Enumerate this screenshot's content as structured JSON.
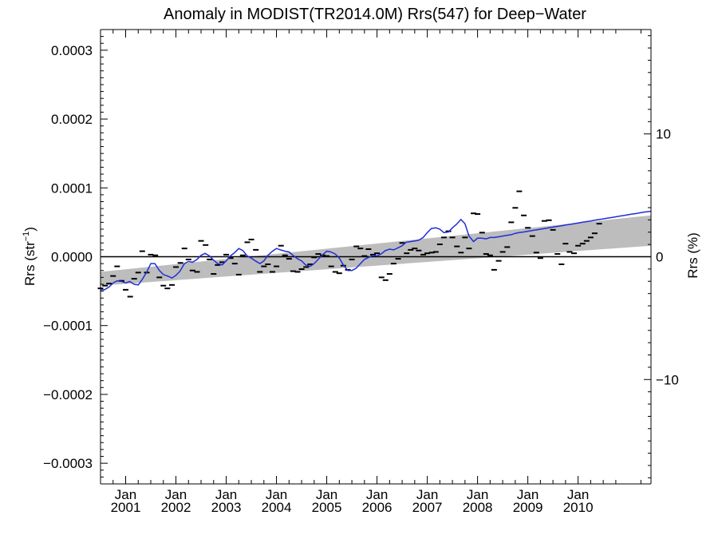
{
  "chart_data": {
    "type": "scatter",
    "title": "Anomaly in MODIST(TR2014.0M) Rrs(547) for Deep−Water",
    "ylabel_left": "Rrs (str⁻¹)",
    "ylabel_right": "Rrs (%)",
    "xlim": [
      2000.0,
      2010.95
    ],
    "ylim_left": [
      -0.00033,
      0.00033
    ],
    "ylim_right": [
      -18.5,
      18.5
    ],
    "y_ticks_left": [
      {
        "value": 0.0003,
        "label": "0.0003"
      },
      {
        "value": 0.0002,
        "label": "0.0002"
      },
      {
        "value": 0.0001,
        "label": "0.0001"
      },
      {
        "value": 0.0,
        "label": "0.0000"
      },
      {
        "value": -0.0001,
        "label": "−0.0001"
      },
      {
        "value": -0.0002,
        "label": "−0.0002"
      },
      {
        "value": -0.0003,
        "label": "−0.0003"
      }
    ],
    "y_ticks_right": [
      {
        "value": 10,
        "label": "10"
      },
      {
        "value": 0,
        "label": "0"
      },
      {
        "value": -10,
        "label": "−10"
      }
    ],
    "x_ticks": [
      {
        "value": 2000.5,
        "month": "Jan",
        "year": "2001"
      },
      {
        "value": 2001.5,
        "month": "Jan",
        "year": "2002"
      },
      {
        "value": 2002.5,
        "month": "Jan",
        "year": "2003"
      },
      {
        "value": 2003.5,
        "month": "Jan",
        "year": "2004"
      },
      {
        "value": 2004.5,
        "month": "Jan",
        "year": "2005"
      },
      {
        "value": 2005.5,
        "month": "Jan",
        "year": "2006"
      },
      {
        "value": 2006.5,
        "month": "Jan",
        "year": "2007"
      },
      {
        "value": 2007.5,
        "month": "Jan",
        "year": "2008"
      },
      {
        "value": 2008.5,
        "month": "Jan",
        "year": "2009"
      },
      {
        "value": 2009.5,
        "month": "Jan",
        "year": "2010"
      }
    ],
    "monthly_anomalies": {
      "x": [
        2000.0,
        2000.09,
        2000.17,
        2000.25,
        2000.33,
        2000.42,
        2000.5,
        2000.59,
        2000.67,
        2000.75,
        2000.83,
        2000.92,
        2001.0,
        2001.09,
        2001.17,
        2001.25,
        2001.33,
        2001.42,
        2001.5,
        2001.59,
        2001.67,
        2001.75,
        2001.83,
        2001.92,
        2002.0,
        2002.09,
        2002.17,
        2002.25,
        2002.33,
        2002.42,
        2002.5,
        2002.59,
        2002.67,
        2002.75,
        2002.83,
        2002.92,
        2003.0,
        2003.09,
        2003.17,
        2003.25,
        2003.33,
        2003.42,
        2003.5,
        2003.59,
        2003.67,
        2003.75,
        2003.83,
        2003.92,
        2004.0,
        2004.09,
        2004.17,
        2004.25,
        2004.33,
        2004.42,
        2004.5,
        2004.59,
        2004.67,
        2004.75,
        2004.83,
        2004.92,
        2005.0,
        2005.09,
        2005.17,
        2005.25,
        2005.33,
        2005.42,
        2005.5,
        2005.59,
        2005.67,
        2005.75,
        2005.83,
        2005.92,
        2006.0,
        2006.09,
        2006.17,
        2006.25,
        2006.33,
        2006.42,
        2006.5,
        2006.59,
        2006.67,
        2006.75,
        2006.83,
        2006.92,
        2007.0,
        2007.09,
        2007.17,
        2007.25,
        2007.33,
        2007.42,
        2007.5,
        2007.59,
        2007.67,
        2007.75,
        2007.83,
        2007.92,
        2008.0,
        2008.09,
        2008.17,
        2008.25,
        2008.33,
        2008.42,
        2008.5,
        2008.59,
        2008.67,
        2008.75,
        2008.83,
        2008.92,
        2009.0,
        2009.09,
        2009.17,
        2009.25,
        2009.33,
        2009.42,
        2009.5,
        2009.59,
        2009.67,
        2009.75,
        2009.83,
        2009.92
      ],
      "y": [
        -4.6e-05,
        -4.2e-05,
        -3.9e-05,
        -2.8e-05,
        -1.4e-05,
        -3.5e-05,
        -4.8e-05,
        -5.8e-05,
        -3.2e-05,
        -2.3e-05,
        8e-06,
        -2.3e-05,
        3e-06,
        2e-06,
        -3e-05,
        -4.2e-05,
        -4.6e-05,
        -4.1e-05,
        -1.5e-05,
        -9e-06,
        1.2e-05,
        -4e-06,
        -2e-05,
        -2.2e-05,
        2.3e-05,
        1.7e-05,
        -4e-06,
        -2.5e-05,
        -1.2e-05,
        -8e-06,
        3e-06,
        -2e-06,
        -1e-05,
        -2.6e-05,
        2e-06,
        2.1e-05,
        2.5e-05,
        1e-05,
        -2.2e-05,
        -1.4e-05,
        -1.1e-05,
        -2.2e-05,
        -1.4e-05,
        1.6e-05,
        2e-06,
        -3e-06,
        -2.1e-05,
        -2.2e-05,
        -1.8e-05,
        -1.5e-05,
        -1.1e-05,
        -1e-06,
        4e-06,
        2e-06,
        1e-06,
        -1.4e-05,
        -2.2e-05,
        -2.4e-05,
        -1.3e-05,
        -1.9e-05,
        -4e-06,
        1.5e-05,
        1.2e-05,
        1e-06,
        1.1e-05,
        3e-06,
        5e-06,
        -3e-05,
        -3.4e-05,
        -2.5e-05,
        -1e-05,
        -3e-06,
        2e-05,
        5e-06,
        1e-05,
        1.2e-05,
        9e-06,
        3e-06,
        5e-06,
        6e-06,
        7e-06,
        1.8e-05,
        2.8e-05,
        3.7e-05,
        2.8e-05,
        1.5e-05,
        6e-06,
        2.8e-05,
        1.2e-05,
        6.3e-05,
        6.2e-05,
        3.5e-05,
        4e-06,
        2e-06,
        -1.9e-05,
        -6e-06,
        7e-06,
        1.4e-05,
        5e-05,
        7.1e-05,
        9.5e-05,
        6e-05,
        4.2e-05,
        3e-05,
        6e-06,
        -2e-06,
        5.2e-05,
        5.3e-05,
        3.9e-05,
        4e-06,
        -1.1e-05,
        1.9e-05,
        7e-06,
        5e-06,
        1.6e-05,
        1.9e-05,
        2.3e-05,
        2.8e-05,
        3.4e-05,
        4.8e-05
      ]
    },
    "smoothed_series": {
      "x": [
        2000.0,
        2000.08,
        2000.17,
        2000.25,
        2000.33,
        2000.42,
        2000.5,
        2000.58,
        2000.67,
        2000.75,
        2000.83,
        2000.92,
        2001.0,
        2001.08,
        2001.17,
        2001.25,
        2001.33,
        2001.42,
        2001.5,
        2001.58,
        2001.67,
        2001.75,
        2001.83,
        2001.92,
        2002.0,
        2002.08,
        2002.17,
        2002.25,
        2002.33,
        2002.42,
        2002.5,
        2002.58,
        2002.67,
        2002.75,
        2002.83,
        2002.92,
        2003.0,
        2003.08,
        2003.17,
        2003.25,
        2003.33,
        2003.42,
        2003.5,
        2003.58,
        2003.67,
        2003.75,
        2003.83,
        2003.92,
        2004.0,
        2004.08,
        2004.17,
        2004.25,
        2004.33,
        2004.42,
        2004.5,
        2004.58,
        2004.67,
        2004.75,
        2004.83,
        2004.92,
        2005.0,
        2005.08,
        2005.17,
        2005.25,
        2005.33,
        2005.42,
        2005.5,
        2005.58,
        2005.67,
        2005.75,
        2005.83,
        2005.92,
        2006.0,
        2006.08,
        2006.17,
        2006.25,
        2006.33,
        2006.42,
        2006.5,
        2006.58,
        2006.67,
        2006.75,
        2006.83,
        2006.92,
        2007.0,
        2007.08,
        2007.17,
        2007.25,
        2007.33,
        2007.42,
        2007.5,
        2007.58,
        2007.67,
        2007.75,
        2007.83,
        2007.92,
        2008.0,
        2008.08,
        2008.17,
        2008.25,
        2008.33,
        2008.42,
        2008.5,
        2008.58,
        2008.67,
        2008.75,
        2008.83,
        2008.92,
        2009.0,
        2009.08,
        2009.17,
        2009.25,
        2009.33,
        2009.42,
        2009.5,
        2009.58,
        2009.67,
        2009.75,
        2009.83,
        2009.92,
        2010.0,
        2010.08,
        2010.17,
        2010.25,
        2010.33,
        2010.42,
        2010.5,
        2010.58,
        2010.67,
        2010.75,
        2010.83,
        2010.95
      ],
      "y": [
        -4.8e-05,
        -4.8e-05,
        -4.4e-05,
        -3.8e-05,
        -3.5e-05,
        -3.6e-05,
        -3.8e-05,
        -3.6e-05,
        -4e-05,
        -4.1e-05,
        -3.3e-05,
        -2.2e-05,
        -1e-05,
        -1e-05,
        -2e-05,
        -2.6e-05,
        -2.8e-05,
        -3.1e-05,
        -2.7e-05,
        -2.1e-05,
        -1e-05,
        -7e-06,
        -8e-06,
        -4e-06,
        2e-06,
        5e-06,
        1e-06,
        -5e-06,
        -1e-05,
        -1.2e-05,
        -6e-06,
        1e-06,
        6e-06,
        1.2e-05,
        9e-06,
        1e-06,
        -2e-06,
        -6e-06,
        -1e-05,
        -6e-06,
        2e-06,
        8e-06,
        1.2e-05,
        1e-05,
        8e-06,
        7e-06,
        2e-06,
        -3e-06,
        -6e-06,
        -1.2e-05,
        -1.4e-05,
        -1e-05,
        -4e-06,
        3e-06,
        8e-06,
        7e-06,
        4e-06,
        -2e-06,
        -1.2e-05,
        -2e-05,
        -2e-05,
        -1.7e-05,
        -1e-05,
        -4e-06,
        -1e-06,
        2e-06,
        1e-06,
        4e-06,
        9e-06,
        1.1e-05,
        1e-05,
        1.3e-05,
        1.6e-05,
        2.1e-05,
        2.2e-05,
        2.3e-05,
        2.4e-05,
        2.8e-05,
        3.5e-05,
        4.1e-05,
        4.2e-05,
        4e-05,
        3.5e-05,
        3.6e-05,
        4.2e-05,
        4.7e-05,
        5.4e-05,
        4.8e-05,
        3e-05,
        2.2e-05,
        2.7e-05,
        2.7e-05,
        2.6e-05,
        2.8e-05,
        2.8e-05,
        2.9e-05,
        3e-05,
        3.1e-05,
        3.2e-05,
        3.4e-05,
        3.5e-05,
        3.6e-05,
        3.7e-05,
        3.8e-05,
        3.9e-05,
        4e-05,
        4.1e-05,
        4.2e-05,
        4.3e-05,
        4.4e-05,
        4.5e-05,
        4.6e-05,
        4.7e-05,
        4.8e-05,
        4.9e-05,
        5e-05,
        5.1e-05,
        5.2e-05,
        5.3e-05,
        5.4e-05,
        5.5e-05,
        5.6e-05,
        5.7e-05,
        5.8e-05,
        5.9e-05,
        6e-05,
        6.1e-05,
        6.2e-05,
        6.3e-05,
        6.4e-05,
        6.5e-05,
        6.6e-05
      ],
      "color": "#1f2fd6"
    },
    "trend_band": {
      "x": [
        2000.0,
        2010.95
      ],
      "upper": [
        -2.2e-05,
        6e-05
      ],
      "lower": [
        -4.2e-05,
        1.6e-05
      ],
      "color": "#bdbdbd"
    },
    "zero_line": 0.0
  }
}
